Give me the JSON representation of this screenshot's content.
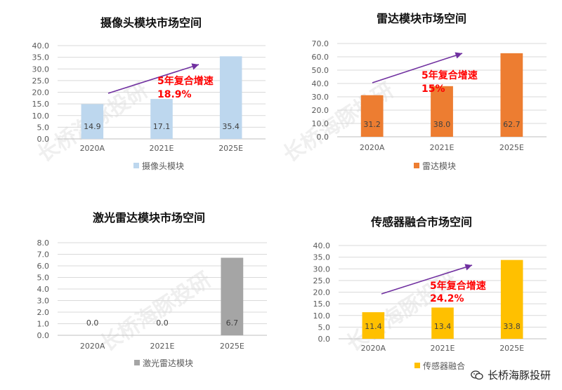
{
  "colors": {
    "arrow": "#7030a0",
    "cagr": "#ff0000",
    "grid": "#d9d9d9",
    "axis": "#bfbfbf"
  },
  "watermark": "长桥海豚投研",
  "footer": {
    "brand": "长桥海豚投研",
    "icon": "wechat-icon"
  },
  "chart_data": [
    {
      "type": "bar",
      "title": "摄像头模块市场空间",
      "categories": [
        "2020A",
        "2021E",
        "2025E"
      ],
      "series": [
        {
          "name": "摄像头模块",
          "values": [
            14.9,
            17.1,
            35.4
          ],
          "labels": [
            "14.9",
            "17.1",
            "35.4"
          ],
          "color": "#bdd7ee"
        }
      ],
      "ylim": [
        0,
        40
      ],
      "yticks": [
        "0.0",
        "5.0",
        "10.0",
        "15.0",
        "20.0",
        "25.0",
        "30.0",
        "35.0",
        "40.0"
      ],
      "grid": true,
      "legend": "bottom",
      "annotation": {
        "line1": "5年复合增速",
        "line2": "18.9%"
      }
    },
    {
      "type": "bar",
      "title": "雷达模块市场空间",
      "categories": [
        "2020A",
        "2021E",
        "2025E"
      ],
      "series": [
        {
          "name": "雷达模块",
          "values": [
            31.2,
            38.0,
            62.7
          ],
          "labels": [
            "31.2",
            "38.0",
            "62.7"
          ],
          "color": "#ed7d31"
        }
      ],
      "ylim": [
        0,
        70
      ],
      "yticks": [
        "0.0",
        "10.0",
        "20.0",
        "30.0",
        "40.0",
        "50.0",
        "60.0",
        "70.0"
      ],
      "grid": true,
      "legend": "bottom",
      "annotation": {
        "line1": "5年复合增速",
        "line2": "15%"
      }
    },
    {
      "type": "bar",
      "title": "激光雷达模块市场空间",
      "categories": [
        "2020A",
        "2021E",
        "2025E"
      ],
      "series": [
        {
          "name": "激光雷达模块",
          "values": [
            0.0,
            0.0,
            6.7
          ],
          "labels": [
            "0.0",
            "0.0",
            "6.7"
          ],
          "color": "#a5a5a5"
        }
      ],
      "ylim": [
        0,
        8
      ],
      "yticks": [
        "0.0",
        "1.0",
        "2.0",
        "3.0",
        "4.0",
        "5.0",
        "6.0",
        "7.0",
        "8.0"
      ],
      "grid": true,
      "legend": "bottom"
    },
    {
      "type": "bar",
      "title": "传感器融合市场空间",
      "categories": [
        "2020A",
        "2021E",
        "2025E"
      ],
      "series": [
        {
          "name": "传感器融合",
          "values": [
            11.4,
            13.4,
            33.8
          ],
          "labels": [
            "11.4",
            "13.4",
            "33.8"
          ],
          "color": "#ffc000"
        }
      ],
      "ylim": [
        0,
        40
      ],
      "yticks": [
        "0.0",
        "5.0",
        "10.0",
        "15.0",
        "20.0",
        "25.0",
        "30.0",
        "35.0",
        "40.0"
      ],
      "grid": true,
      "legend": "bottom",
      "annotation": {
        "line1": "5年复合增速",
        "line2": "24.2%"
      }
    }
  ]
}
